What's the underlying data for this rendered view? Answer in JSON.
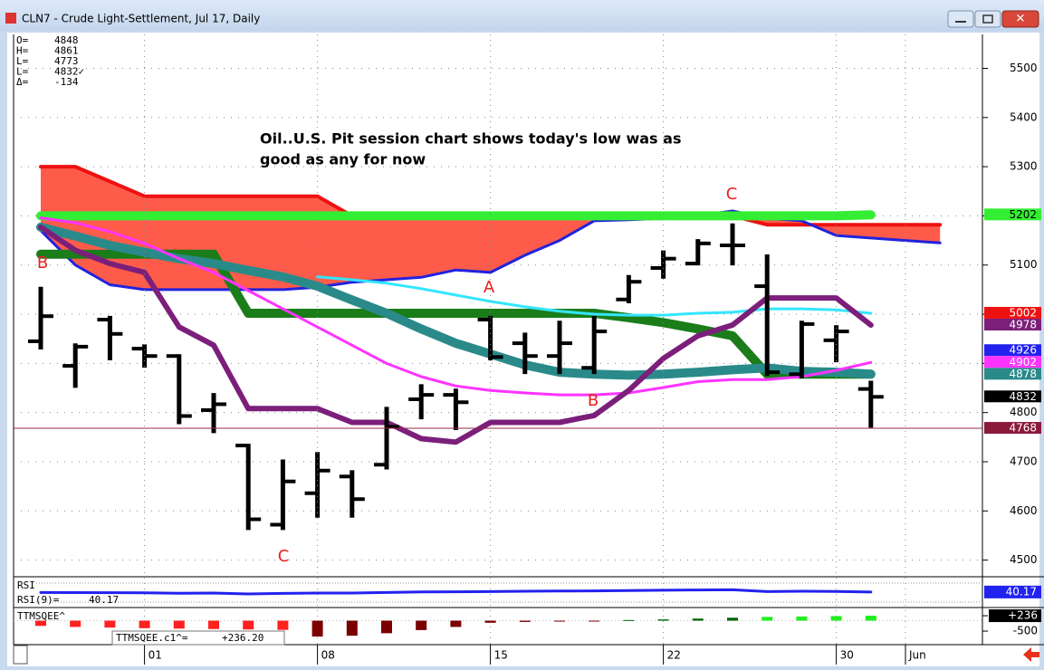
{
  "chart_data": {
    "type": "ohlc",
    "title": "CLN7 - Crude Light-Settlement, Jul 17, Daily",
    "readout": {
      "labels": [
        "O=",
        "H=",
        "L=",
        "L=",
        "Δ="
      ],
      "values": [
        "4848",
        "4861",
        "4773",
        "4832✓",
        "-134"
      ]
    },
    "annotation": [
      "Oil..U.S. Pit session chart shows today's low was as",
      "good as any for now"
    ],
    "wave_labels": [
      "B",
      "A",
      "C",
      "B",
      "C"
    ],
    "wave_color": "#e8201c",
    "categories": [
      null,
      null,
      null,
      "01",
      null,
      null,
      null,
      null,
      "08",
      null,
      null,
      null,
      null,
      "15",
      null,
      null,
      null,
      null,
      "22",
      null,
      null,
      null,
      null,
      "30",
      null,
      "Jun",
      null
    ],
    "open": [
      4945,
      4895,
      4989,
      4930,
      4915,
      4805,
      4733,
      4572,
      4636,
      4670,
      4694,
      4827,
      4836,
      4989,
      4941,
      4915,
      4891,
      5030,
      5094,
      5103,
      5140,
      5057,
      4878,
      4947,
      4848,
      null,
      null
    ],
    "high": [
      5052,
      4937,
      4993,
      4935,
      4915,
      4836,
      4733,
      4701,
      4716,
      4679,
      4808,
      4854,
      4845,
      4993,
      4959,
      4983,
      4993,
      5076,
      5126,
      5149,
      5181,
      5118,
      4983,
      4974,
      4861,
      null,
      null
    ],
    "low": [
      4932,
      4854,
      4910,
      4895,
      4780,
      4762,
      4565,
      4565,
      4590,
      4590,
      4688,
      4790,
      4768,
      4910,
      4882,
      4882,
      4882,
      5026,
      5076,
      5103,
      5103,
      4878,
      4873,
      4906,
      4773,
      null,
      null
    ],
    "close": [
      4996,
      4934,
      4960,
      4915,
      4793,
      4817,
      4583,
      4660,
      4682,
      4624,
      4771,
      4836,
      4821,
      4913,
      4915,
      4941,
      4965,
      5066,
      5113,
      5144,
      5140,
      4882,
      4980,
      4965,
      4832,
      null,
      null
    ],
    "bar_color": "#000000",
    "ylim": [
      4468,
      5569
    ],
    "yticks": [
      4500,
      4600,
      4700,
      4800,
      4900,
      5000,
      5100,
      5200,
      5300,
      5400,
      5500
    ],
    "grid": true,
    "cloud": {
      "fill": "#ff5b4b",
      "upper": {
        "color": "#ee1111",
        "values": [
          5300,
          5300,
          5270,
          5240,
          5240,
          5240,
          5240,
          5240,
          5240,
          5200,
          5200,
          5200,
          5200,
          5200,
          5200,
          5200,
          5200,
          5200,
          5200,
          5200,
          5200,
          5182,
          5182,
          5182,
          5182,
          5182,
          5182
        ]
      },
      "lower": {
        "color": "#2222dd",
        "values": [
          5170,
          5100,
          5060,
          5050,
          5050,
          5050,
          5050,
          5050,
          5055,
          5065,
          5070,
          5075,
          5090,
          5085,
          5120,
          5150,
          5190,
          5192,
          5195,
          5200,
          5210,
          5195,
          5190,
          5160,
          5155,
          5150,
          5145
        ]
      }
    },
    "lines": [
      {
        "color": "#33ee33",
        "width": 10,
        "values": [
          5200,
          5200,
          5200,
          5200,
          5200,
          5200,
          5200,
          5200,
          5200,
          5200,
          5200,
          5200,
          5200,
          5200,
          5200,
          5200,
          5200,
          5200,
          5200,
          5200,
          5200,
          5200,
          5200,
          5200,
          5202,
          null,
          null
        ]
      },
      {
        "color": "#1a7d1a",
        "width": 10,
        "values": [
          5122,
          5122,
          5122,
          5122,
          5122,
          5122,
          5002,
          5002,
          5002,
          5002,
          5002,
          5002,
          5002,
          5002,
          5002,
          5002,
          5002,
          4993,
          4983,
          4970,
          4956,
          4878,
          4878,
          4878,
          4878,
          null,
          null
        ]
      },
      {
        "color": "#2a8a8a",
        "width": 10,
        "values": [
          5177,
          5159,
          5140,
          5126,
          5113,
          5103,
          5089,
          5076,
          5057,
          5029,
          5002,
          4970,
          4941,
          4919,
          4897,
          4882,
          4878,
          4876,
          4878,
          4882,
          4887,
          4891,
          4884,
          4882,
          4878,
          null,
          null
        ]
      },
      {
        "color": "#33e6ff",
        "width": 3,
        "values": [
          null,
          null,
          null,
          null,
          null,
          null,
          null,
          null,
          5076,
          5070,
          5063,
          5052,
          5039,
          5026,
          5015,
          5006,
          5000,
          4998,
          4998,
          5002,
          5004,
          5011,
          5011,
          5009,
          5002,
          null,
          null
        ]
      },
      {
        "color": "#ff33ff",
        "width": 3,
        "values": [
          5196,
          5186,
          5168,
          5144,
          5113,
          5085,
          5048,
          5011,
          4974,
          4937,
          4900,
          4873,
          4854,
          4845,
          4840,
          4836,
          4836,
          4840,
          4851,
          4863,
          4867,
          4867,
          4873,
          4886,
          4902,
          null,
          null
        ]
      },
      {
        "color": "#7b1f7b",
        "width": 6,
        "values": [
          5177,
          5130,
          5103,
          5085,
          4974,
          4937,
          4808,
          4808,
          4808,
          4780,
          4780,
          4747,
          4740,
          4780,
          4780,
          4780,
          4794,
          4845,
          4910,
          4956,
          4978,
          5033,
          5033,
          5033,
          4978,
          null,
          null
        ]
      }
    ],
    "hline": {
      "value": 4768,
      "color": "#9b2a4a"
    },
    "price_labels": [
      {
        "value": 5202,
        "color": "#33ee33",
        "text_color": "#000000"
      },
      {
        "value": 5002,
        "color": "#ee1111",
        "text_color": "#ffffff"
      },
      {
        "value": 4978,
        "color": "#7b1f7b",
        "text_color": "#ffffff"
      },
      {
        "value": 4926,
        "color": "#2222ee",
        "text_color": "#ffffff"
      },
      {
        "value": 4902,
        "color": "#ff33ff",
        "text_color": "#ffffff"
      },
      {
        "value": 4878,
        "color": "#2a8a8a",
        "text_color": "#ffffff"
      },
      {
        "value": 4832,
        "color": "#000000",
        "text_color": "#ffffff"
      },
      {
        "value": 4768,
        "color": "#8b1a3a",
        "text_color": "#ffffff"
      }
    ],
    "rsi": {
      "title": "RSI",
      "readout_label": "RSI(9)=",
      "last": 40.17,
      "color": "#2222ee",
      "ylim": [
        20,
        60
      ],
      "values": [
        39.5,
        39.4,
        39.3,
        39,
        38.5,
        38.8,
        37.5,
        38.2,
        38.8,
        38.8,
        39.5,
        40.3,
        40.5,
        40.8,
        41.2,
        41.5,
        41.8,
        42.2,
        42.6,
        43,
        43.3,
        40.8,
        41.2,
        41,
        40.17,
        null,
        null
      ]
    },
    "ttm": {
      "title": "TTMSQEE^",
      "readout_label": "TTMSQEE.c1^=",
      "readout": {
        "value": 236.2,
        "label": "+236.20"
      },
      "ylim": [
        -1147,
        585
      ],
      "yticks": [
        {
          "value": 236,
          "label": "+236"
        },
        -500
      ],
      "values": [
        -250,
        -300,
        -330,
        -360,
        -380,
        -400,
        -420,
        -440,
        -760,
        -720,
        -600,
        -450,
        -300,
        -100,
        -60,
        -30,
        -10,
        30,
        60,
        100,
        140,
        180,
        200,
        220,
        236,
        null,
        null
      ],
      "colors": [
        "#ff2020",
        "#ff2020",
        "#ff2020",
        "#ff2020",
        "#ff2020",
        "#ff2020",
        "#ff2020",
        "#ff2020",
        "#7a0000",
        "#7a0000",
        "#7a0000",
        "#7a0000",
        "#7a0000",
        "#7a0000",
        "#7a0000",
        "#7a0000",
        "#7a0000",
        "#006400",
        "#006400",
        "#006400",
        "#006400",
        "#22ee22",
        "#22ee22",
        "#22ee22",
        "#22ee22",
        null,
        null
      ]
    }
  }
}
